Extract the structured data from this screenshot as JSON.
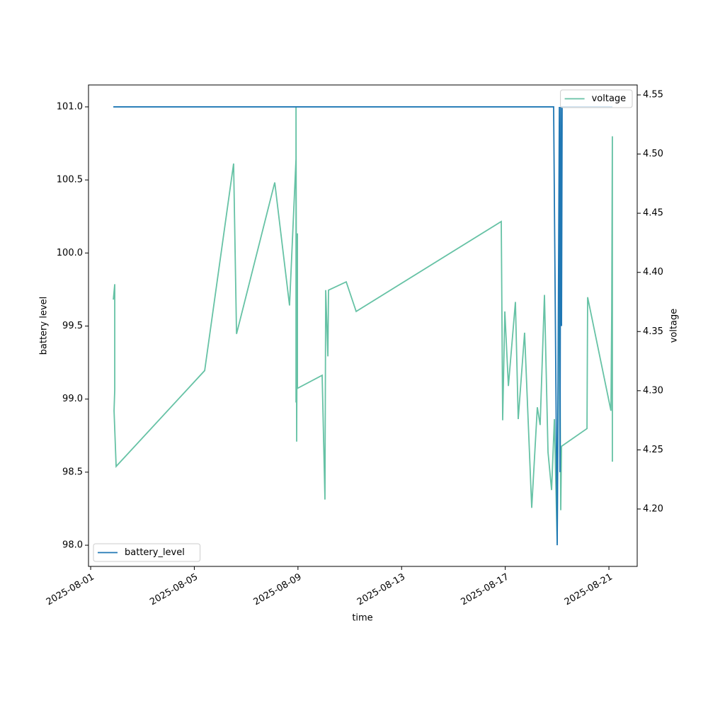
{
  "chart_data": {
    "type": "line",
    "xlabel": "time",
    "ylabel": "battery level",
    "y2label": "voltage",
    "xlim": [
      "2025-07-31T22:00",
      "2025-08-22T02:12"
    ],
    "xticks": [
      "2025-08-01",
      "2025-08-05",
      "2025-08-09",
      "2025-08-13",
      "2025-08-17",
      "2025-08-21"
    ],
    "ylim": [
      97.855,
      101.15
    ],
    "yticks": [
      {
        "value": 98,
        "label": "98.0"
      },
      98.5,
      {
        "value": 99,
        "label": "99.0"
      },
      99.5,
      {
        "value": 100,
        "label": "100.0"
      },
      100.5,
      {
        "value": 101,
        "label": "101.0"
      }
    ],
    "y2lim": [
      4.1515,
      4.5584
    ],
    "y2ticks": [
      {
        "value": 4.2,
        "label": "4.20"
      },
      4.25,
      {
        "value": 4.3,
        "label": "4.30"
      },
      4.35,
      {
        "value": 4.4,
        "label": "4.40"
      },
      4.45,
      {
        "value": 4.5,
        "label": "4.50"
      },
      4.55
    ],
    "legend": "lower left",
    "legend2": "upper right",
    "series": [
      {
        "name": "battery_level",
        "color": "#1f77b4",
        "axis": "y",
        "x": [
          "2025-08-01T21:00",
          "2025-08-18T20:48",
          "2025-08-19T00:06",
          "2025-08-19T02:06",
          "2025-08-19T02:42",
          "2025-08-19T03:24",
          "2025-08-19T04:06",
          "2025-08-19T04:42",
          "2025-08-21T03:12"
        ],
        "values": [
          101,
          101,
          98,
          101,
          98.5,
          101,
          99.5,
          101,
          101
        ]
      },
      {
        "name": "voltage",
        "color": "#66c2a5",
        "axis": "y2",
        "x": [
          "2025-08-01T21:00",
          "2025-08-01T22:18",
          "2025-08-01T22:18",
          "2025-08-01T21:40",
          "2025-08-01T23:36",
          "2025-08-05T09:36",
          "2025-08-06T12:24",
          "2025-08-06T15:06",
          "2025-08-08T02:30",
          "2025-08-08T16:12",
          "2025-08-08T22:12",
          "2025-08-08T22:12",
          "2025-08-08T22:12",
          "2025-08-08T22:48",
          "2025-08-08T23:30",
          "2025-08-08T23:30",
          "2025-08-09T22:24",
          "2025-08-10T01:00",
          "2025-08-10T01:42",
          "2025-08-10T03:42",
          "2025-08-10T04:18",
          "2025-08-10T20:42",
          "2025-08-11T05:54",
          "2025-08-16T20:18",
          "2025-08-16T21:36",
          "2025-08-16T23:36",
          "2025-08-17T02:54",
          "2025-08-17T09:24",
          "2025-08-17T12:00",
          "2025-08-17T17:54",
          "2025-08-18T00:30",
          "2025-08-18T05:42",
          "2025-08-18T08:18",
          "2025-08-18T12:18",
          "2025-08-18T15:36",
          "2025-08-18T18:54",
          "2025-08-18T21:30",
          "2025-08-19T00:06",
          "2025-08-19T02:06",
          "2025-08-19T03:24",
          "2025-08-19T04:06",
          "2025-08-20T03:42",
          "2025-08-20T04:18",
          "2025-08-21T01:54",
          "2025-08-21T02:36",
          "2025-08-21T03:12",
          "2025-08-21T03:12"
        ],
        "values": [
          4.377,
          4.39,
          4.301,
          4.283,
          4.236,
          4.317,
          4.492,
          4.348,
          4.476,
          4.372,
          4.496,
          4.29,
          4.54,
          4.257,
          4.433,
          4.302,
          4.313,
          4.208,
          4.385,
          4.329,
          4.385,
          4.392,
          4.367,
          4.443,
          4.275,
          4.367,
          4.304,
          4.375,
          4.276,
          4.349,
          4.201,
          4.286,
          4.271,
          4.381,
          4.248,
          4.216,
          4.276,
          4.171,
          4.418,
          4.199,
          4.253,
          4.268,
          4.379,
          4.283,
          4.367,
          4.515,
          4.24
        ]
      }
    ]
  }
}
